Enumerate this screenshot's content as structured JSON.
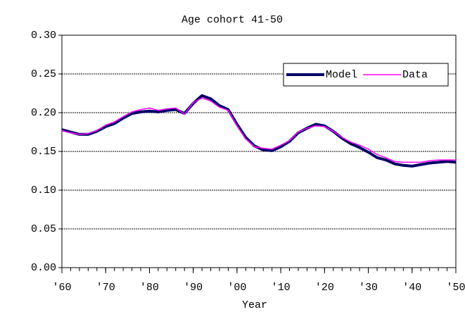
{
  "chart_data": {
    "type": "line",
    "title": "Age cohort 41-50",
    "x_label": "Year",
    "x": [
      1960,
      1962,
      1964,
      1966,
      1968,
      1970,
      1972,
      1974,
      1976,
      1978,
      1980,
      1982,
      1984,
      1986,
      1988,
      1990,
      1992,
      1994,
      1996,
      1998,
      2000,
      2002,
      2004,
      2006,
      2008,
      2010,
      2012,
      2014,
      2016,
      2018,
      2020,
      2022,
      2024,
      2026,
      2028,
      2030,
      2032,
      2034,
      2036,
      2038,
      2040,
      2042,
      2044,
      2046,
      2048,
      2050
    ],
    "series": [
      {
        "name": "Model",
        "color": "#000066",
        "width": 4,
        "values": [
          0.178,
          0.175,
          0.172,
          0.172,
          0.176,
          0.182,
          0.186,
          0.193,
          0.199,
          0.201,
          0.202,
          0.201,
          0.203,
          0.204,
          0.199,
          0.212,
          0.222,
          0.218,
          0.209,
          0.204,
          0.185,
          0.168,
          0.157,
          0.152,
          0.151,
          0.156,
          0.163,
          0.174,
          0.18,
          0.185,
          0.183,
          0.176,
          0.167,
          0.16,
          0.155,
          0.149,
          0.142,
          0.139,
          0.134,
          0.132,
          0.131,
          0.133,
          0.135,
          0.136,
          0.137,
          0.136
        ]
      },
      {
        "name": "Data",
        "color": "#ff00ff",
        "width": 1.5,
        "values": [
          0.177,
          0.174,
          0.172,
          0.173,
          0.177,
          0.184,
          0.188,
          0.195,
          0.201,
          0.204,
          0.206,
          0.203,
          0.205,
          0.206,
          0.198,
          0.213,
          0.219,
          0.215,
          0.207,
          0.203,
          0.183,
          0.166,
          0.156,
          0.154,
          0.153,
          0.158,
          0.164,
          0.175,
          0.18,
          0.183,
          0.182,
          0.176,
          0.168,
          0.162,
          0.158,
          0.153,
          0.146,
          0.142,
          0.137,
          0.136,
          0.136,
          0.136,
          0.138,
          0.139,
          0.139,
          0.139
        ]
      }
    ],
    "xlim": [
      1960,
      2050
    ],
    "xticks": [
      {
        "value": 1960,
        "label": "'60"
      },
      {
        "value": 1970,
        "label": "'70"
      },
      {
        "value": 1980,
        "label": "'80"
      },
      {
        "value": 1990,
        "label": "'90"
      },
      {
        "value": 2000,
        "label": "'00"
      },
      {
        "value": 2010,
        "label": "'10"
      },
      {
        "value": 2020,
        "label": "'20"
      },
      {
        "value": 2030,
        "label": "'30"
      },
      {
        "value": 2040,
        "label": "'40"
      },
      {
        "value": 2050,
        "label": "'50"
      }
    ],
    "ylim": [
      0,
      0.3
    ],
    "yticks": [
      {
        "value": 0,
        "label": "0.00"
      },
      {
        "value": 0.05,
        "label": "0.05"
      },
      {
        "value": 0.1,
        "label": "0.10"
      },
      {
        "value": 0.15,
        "label": "0.15"
      },
      {
        "value": 0.2,
        "label": "0.20"
      },
      {
        "value": 0.25,
        "label": "0.25"
      },
      {
        "value": 0.3,
        "label": "0.30"
      }
    ],
    "grid": true,
    "legend": "upper right"
  }
}
